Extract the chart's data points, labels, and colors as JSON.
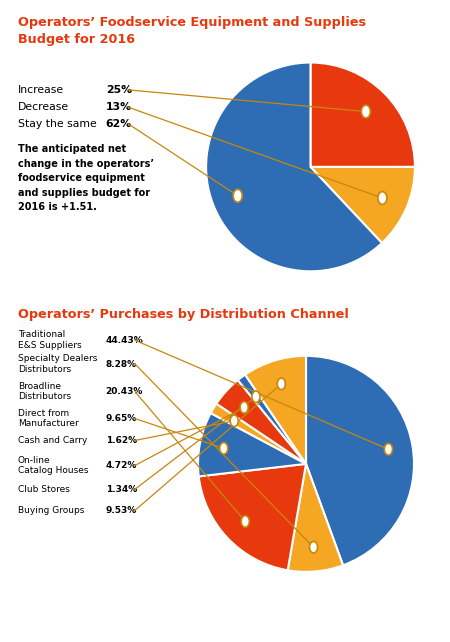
{
  "chart1_title": "Operators’ Foodservice Equipment and Supplies\nBudget for 2016",
  "chart1_values": [
    25,
    13,
    62
  ],
  "chart1_colors": [
    "#E8380D",
    "#F5A623",
    "#2E6DB4"
  ],
  "chart1_note": "The anticipated net\nchange in the operators’\nfoodservice equipment\nand supplies budget for\n2016 is +1.51.",
  "chart1_row_labels": [
    "Increase",
    "Decrease",
    "Stay the same"
  ],
  "chart1_row_pcts": [
    "25%",
    "13%",
    "62%"
  ],
  "chart2_title": "Operators’ Purchases by Distribution Channel",
  "chart2_values": [
    44.43,
    8.28,
    20.43,
    9.65,
    1.62,
    4.72,
    1.34,
    9.53
  ],
  "chart2_colors": [
    "#2E6DB4",
    "#F5A623",
    "#E8380D",
    "#2E6DB4",
    "#F5A623",
    "#E8380D",
    "#2E6DB4",
    "#F5A623"
  ],
  "chart2_row_labels": [
    "Traditional\nE&S Suppliers",
    "Specialty Dealers\nDistributors",
    "Broadline\nDistributors",
    "Direct from\nManufacturer",
    "Cash and Carry",
    "On-line\nCatalog Houses",
    "Club Stores",
    "Buying Groups"
  ],
  "chart2_row_pcts": [
    "44.43%",
    "8.28%",
    "20.43%",
    "9.65%",
    "1.62%",
    "4.72%",
    "1.34%",
    "9.53%"
  ],
  "title_color": "#E8380D",
  "connector_color": "#C8860A",
  "bg_color": "#FFFFFF"
}
